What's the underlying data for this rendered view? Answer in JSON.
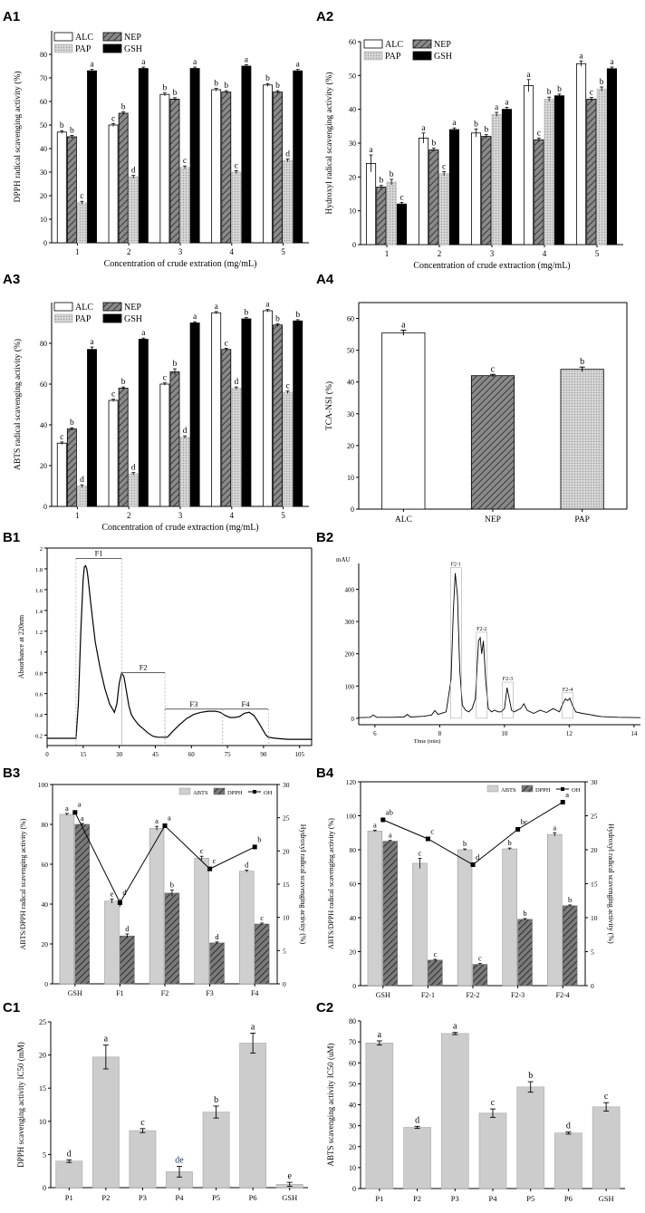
{
  "chart_data": [
    {
      "id": "A1",
      "type": "bar",
      "panel_label": "A1",
      "xlabel": "Concentration of crude extration (mg/mL)",
      "ylabel": "DPPH radical scavenging activity (%)",
      "ylim": [
        0,
        90
      ],
      "yticks": [
        0,
        10,
        20,
        30,
        40,
        50,
        60,
        70,
        80
      ],
      "categories": [
        "1",
        "2",
        "3",
        "4",
        "5"
      ],
      "series": [
        {
          "name": "ALC",
          "values": [
            47,
            50,
            63,
            65,
            67
          ],
          "err": [
            0.6,
            0.6,
            0.6,
            0.6,
            0.6
          ],
          "letters": [
            "b",
            "c",
            "b",
            "b",
            "b"
          ]
        },
        {
          "name": "NEP",
          "values": [
            45,
            55,
            61,
            64,
            64
          ],
          "err": [
            0.6,
            0.6,
            0.6,
            0.6,
            0.6
          ],
          "letters": [
            "b",
            "b",
            "b",
            "b",
            "b"
          ]
        },
        {
          "name": "PAP",
          "values": [
            17,
            28,
            32,
            30,
            35
          ],
          "err": [
            0.6,
            0.6,
            0.6,
            0.6,
            0.6
          ],
          "letters": [
            "c",
            "d",
            "c",
            "c",
            "d"
          ]
        },
        {
          "name": "GSH",
          "values": [
            73,
            74,
            74,
            75,
            73
          ],
          "err": [
            0.6,
            0.6,
            0.6,
            0.6,
            0.6
          ],
          "letters": [
            "a",
            "a",
            "a",
            "a",
            "a"
          ]
        }
      ],
      "legend_position": "top-left"
    },
    {
      "id": "A2",
      "type": "bar",
      "panel_label": "A2",
      "xlabel": "Concentration of crude extraction (mg/mL)",
      "ylabel": "Hydroxyl radical scavenging activity (%)",
      "ylim": [
        0,
        60
      ],
      "yticks": [
        0,
        10,
        20,
        30,
        40,
        50,
        60
      ],
      "categories": [
        "1",
        "2",
        "3",
        "4",
        "5"
      ],
      "series": [
        {
          "name": "ALC",
          "values": [
            24,
            31.5,
            33,
            47,
            53.5
          ],
          "err": [
            2.5,
            1.5,
            1.2,
            1.8,
            0.8
          ],
          "letters": [
            "a",
            "a",
            "b",
            "a",
            "a"
          ]
        },
        {
          "name": "NEP",
          "values": [
            17,
            28,
            32,
            31,
            43
          ],
          "err": [
            0.5,
            0.5,
            0.5,
            0.5,
            0.5
          ],
          "letters": [
            "b",
            "b",
            "b",
            "c",
            "c"
          ]
        },
        {
          "name": "PAP",
          "values": [
            18.5,
            21,
            38.5,
            43,
            46
          ],
          "err": [
            0.8,
            0.6,
            0.6,
            0.6,
            0.6
          ],
          "letters": [
            "b",
            "c",
            "a",
            "b",
            "b"
          ]
        },
        {
          "name": "GSH",
          "values": [
            12,
            34,
            40,
            44,
            52
          ],
          "err": [
            0.5,
            0.5,
            0.6,
            0.5,
            0.5
          ],
          "letters": [
            "c",
            "a",
            "a",
            "b",
            "a"
          ]
        }
      ],
      "legend_position": "top-left"
    },
    {
      "id": "A3",
      "type": "bar",
      "panel_label": "A3",
      "xlabel": "Concentration of crude extraction (mg/mL)",
      "ylabel": "ABTS radical scavenging activity (%)",
      "ylim": [
        0,
        100
      ],
      "yticks": [
        0,
        20,
        40,
        60,
        80
      ],
      "categories": [
        "1",
        "2",
        "3",
        "4",
        "5"
      ],
      "series": [
        {
          "name": "ALC",
          "values": [
            31,
            52,
            60,
            95,
            96
          ],
          "err": [
            0.6,
            0.6,
            0.6,
            0.6,
            0.6
          ],
          "letters": [
            "c",
            "c",
            "c",
            "a",
            "a"
          ]
        },
        {
          "name": "NEP",
          "values": [
            38,
            58,
            66,
            77,
            89
          ],
          "err": [
            0.6,
            0.6,
            1.5,
            0.6,
            0.6
          ],
          "letters": [
            "b",
            "b",
            "b",
            "c",
            "b"
          ]
        },
        {
          "name": "PAP",
          "values": [
            10,
            16,
            34,
            58,
            56
          ],
          "err": [
            0.6,
            0.6,
            0.6,
            0.6,
            0.6
          ],
          "letters": [
            "d",
            "d",
            "d",
            "d",
            "c"
          ]
        },
        {
          "name": "GSH",
          "values": [
            77,
            82,
            90,
            92,
            91
          ],
          "err": [
            1.2,
            0.6,
            0.6,
            0.6,
            0.6
          ],
          "letters": [
            "a",
            "a",
            "a",
            "b",
            "b"
          ]
        }
      ],
      "legend_position": "top-left"
    },
    {
      "id": "A4",
      "type": "bar",
      "panel_label": "A4",
      "xlabel": "",
      "ylabel": "TCA-NSI (%)",
      "ylim": [
        0,
        65
      ],
      "yticks": [
        0,
        10,
        20,
        30,
        40,
        50,
        60
      ],
      "categories": [
        "ALC",
        "NEP",
        "PAP"
      ],
      "values": [
        55.5,
        42,
        44
      ],
      "err": [
        0.8,
        0.4,
        0.7
      ],
      "letters": [
        "a",
        "c",
        "b"
      ]
    },
    {
      "id": "B1",
      "type": "line",
      "panel_label": "B1",
      "xlabel": "",
      "ylabel": "Absorbance at 220nm",
      "xlim": [
        0,
        110
      ],
      "xticks": [
        0,
        15,
        30,
        45,
        60,
        75,
        90,
        105
      ],
      "ylim": [
        0.1,
        2.0
      ],
      "yticks": [
        0.2,
        0.4,
        0.6,
        0.8,
        1.0,
        1.2,
        1.4,
        1.6,
        1.8,
        2.0
      ],
      "x": [
        0,
        12,
        13,
        14,
        15,
        15.5,
        16,
        16.5,
        17,
        18,
        19,
        20,
        22,
        24,
        26,
        28,
        29,
        30,
        31,
        32,
        33,
        34,
        35,
        36,
        38,
        40,
        42,
        44,
        46,
        48,
        50,
        52,
        55,
        58,
        61,
        64,
        67,
        70,
        72,
        74,
        76,
        78,
        80,
        82,
        84,
        86,
        88,
        90,
        91,
        92,
        95,
        100,
        110
      ],
      "y": [
        0.17,
        0.17,
        0.5,
        1.2,
        1.7,
        1.82,
        1.83,
        1.8,
        1.72,
        1.5,
        1.3,
        1.1,
        0.85,
        0.65,
        0.5,
        0.42,
        0.5,
        0.7,
        0.8,
        0.76,
        0.62,
        0.48,
        0.4,
        0.36,
        0.3,
        0.26,
        0.22,
        0.19,
        0.18,
        0.18,
        0.18,
        0.23,
        0.3,
        0.36,
        0.4,
        0.42,
        0.43,
        0.43,
        0.42,
        0.39,
        0.37,
        0.37,
        0.38,
        0.41,
        0.42,
        0.39,
        0.32,
        0.24,
        0.2,
        0.18,
        0.17,
        0.16,
        0.16
      ],
      "fractions": [
        {
          "label": "F1",
          "start": 12,
          "end": 31,
          "level": 1.9
        },
        {
          "label": "F2",
          "start": 31,
          "end": 49,
          "level": 0.8
        },
        {
          "label": "F3",
          "start": 49,
          "end": 73,
          "level": 0.45
        },
        {
          "label": "F4",
          "start": 73,
          "end": 92,
          "level": 0.45
        }
      ]
    },
    {
      "id": "B2",
      "type": "line",
      "panel_label": "B2",
      "xlabel": "Time (min)",
      "ylabel": "mAU",
      "xlim": [
        5.5,
        14.2
      ],
      "xticks": [
        6,
        8,
        10,
        12,
        14
      ],
      "ylim": [
        -20,
        480
      ],
      "yticks": [
        0,
        100,
        200,
        300,
        400
      ],
      "x": [
        5.5,
        5.85,
        5.95,
        6.05,
        6.5,
        6.9,
        7.0,
        7.1,
        7.5,
        7.75,
        7.85,
        7.95,
        8.2,
        8.35,
        8.42,
        8.48,
        8.55,
        8.62,
        8.7,
        8.8,
        8.9,
        9.0,
        9.1,
        9.2,
        9.25,
        9.3,
        9.35,
        9.42,
        9.5,
        9.6,
        9.7,
        9.8,
        9.9,
        10.0,
        10.08,
        10.15,
        10.22,
        10.3,
        10.5,
        10.6,
        10.7,
        10.9,
        11.1,
        11.3,
        11.5,
        11.7,
        11.8,
        11.88,
        11.95,
        12.02,
        12.1,
        12.2,
        12.4,
        12.6,
        12.8,
        13.0,
        13.5,
        14.2
      ],
      "y": [
        2,
        3,
        10,
        3,
        3,
        4,
        12,
        4,
        6,
        10,
        24,
        12,
        20,
        120,
        330,
        450,
        380,
        150,
        40,
        25,
        20,
        30,
        60,
        240,
        250,
        200,
        240,
        120,
        30,
        20,
        25,
        20,
        20,
        30,
        95,
        60,
        25,
        20,
        30,
        45,
        25,
        15,
        25,
        18,
        30,
        20,
        45,
        60,
        55,
        62,
        40,
        20,
        15,
        12,
        8,
        5,
        3,
        2
      ],
      "peak_labels": [
        {
          "label": "F2-1",
          "x": 8.5,
          "y": 450
        },
        {
          "label": "F2-2",
          "x": 9.3,
          "y": 250
        },
        {
          "label": "F2-3",
          "x": 10.1,
          "y": 95
        },
        {
          "label": "F2-4",
          "x": 11.95,
          "y": 62
        }
      ]
    },
    {
      "id": "B3",
      "type": "bar",
      "panel_label": "B3",
      "ylabel": "ABTS/DPPH radical scavenging activity (%)",
      "y2label": "Hydroxyl radical scavenging activity (%)",
      "ylim": [
        0,
        100
      ],
      "yticks": [
        0,
        20,
        40,
        60,
        80,
        100
      ],
      "y2lim": [
        0,
        30
      ],
      "y2ticks": [
        0,
        5,
        10,
        15,
        20,
        25,
        30
      ],
      "categories": [
        "GSH",
        "F1",
        "F2",
        "F3",
        "F4"
      ],
      "series": [
        {
          "name": "ABTS",
          "values": [
            85,
            41.5,
            78,
            63,
            56.5
          ],
          "err": [
            0.5,
            1,
            1,
            1,
            0.5
          ],
          "letters": [
            "a",
            "e",
            "a",
            "c",
            "d"
          ]
        },
        {
          "name": "DPPH",
          "values": [
            80,
            24,
            45.5,
            20.5,
            30
          ],
          "err": [
            0.5,
            1,
            1.5,
            0.5,
            0.5
          ],
          "letters": [
            "a",
            "d",
            "b",
            "d",
            "c"
          ]
        }
      ],
      "line": {
        "name": "OH",
        "values": [
          25.8,
          12.2,
          23.8,
          17.3,
          20.6
        ],
        "err": [
          0.3,
          0.6,
          0.3,
          0.3,
          0.2
        ],
        "letters": [
          "a",
          "d",
          "a",
          "c",
          "b"
        ]
      },
      "legend_position": "top-right"
    },
    {
      "id": "B4",
      "type": "bar",
      "panel_label": "B4",
      "ylabel": "ABTS/DPPH radical scavenging activity (%)",
      "y2label": "Hydroxyl radical scavenging activity (%)",
      "ylim": [
        0,
        120
      ],
      "yticks": [
        0,
        20,
        40,
        60,
        80,
        100,
        120
      ],
      "y2lim": [
        0,
        30
      ],
      "y2ticks": [
        0,
        5,
        10,
        15,
        20,
        25,
        30
      ],
      "categories": [
        "GSH",
        "F2-1",
        "F2-2",
        "F2-3",
        "F2-4"
      ],
      "series": [
        {
          "name": "ABTS",
          "values": [
            91,
            72,
            80,
            80.5,
            89
          ],
          "err": [
            0.5,
            3,
            0.5,
            0.5,
            1
          ],
          "letters": [
            "a",
            "c",
            "b",
            "b",
            "a"
          ]
        },
        {
          "name": "DPPH",
          "values": [
            85,
            15,
            12.5,
            39,
            47
          ],
          "err": [
            0.5,
            0.5,
            0.5,
            0.5,
            0.5
          ],
          "letters": [
            "a",
            "c",
            "c",
            "b",
            "b"
          ]
        }
      ],
      "line": {
        "name": "OH",
        "values": [
          24.4,
          21.6,
          17.8,
          23,
          27
        ],
        "err": [
          0.2,
          0.2,
          0.2,
          0.2,
          0.2
        ],
        "letters": [
          "ab",
          "c",
          "d",
          "bc",
          "a"
        ]
      },
      "legend_position": "top-right"
    },
    {
      "id": "C1",
      "type": "bar",
      "panel_label": "C1",
      "ylabel": "DPPH scavenging activity IC50 (mM)",
      "ylim": [
        0,
        25
      ],
      "yticks": [
        0,
        5,
        10,
        15,
        20,
        25
      ],
      "categories": [
        "P1",
        "P2",
        "P3",
        "P4",
        "P5",
        "P6",
        "GSH"
      ],
      "values": [
        4.0,
        19.7,
        8.6,
        2.4,
        11.4,
        21.8,
        0.5
      ],
      "err": [
        0.2,
        1.8,
        0.3,
        0.8,
        0.9,
        1.5,
        0.3
      ],
      "letters": [
        "d",
        "a",
        "c",
        "de",
        "b",
        "a",
        "e"
      ]
    },
    {
      "id": "C2",
      "type": "bar",
      "panel_label": "C2",
      "ylabel": "ABTS scavenging activity IC50 (uM)",
      "ylim": [
        0,
        80
      ],
      "yticks": [
        0,
        10,
        20,
        30,
        40,
        50,
        60,
        70,
        80
      ],
      "categories": [
        "P1",
        "P2",
        "P3",
        "P4",
        "P5",
        "P6",
        "GSH"
      ],
      "values": [
        69.5,
        29.2,
        74,
        36,
        48.5,
        26.5,
        39
      ],
      "err": [
        1.0,
        0.5,
        0.5,
        2.0,
        2.5,
        0.5,
        2.0
      ],
      "letters": [
        "a",
        "d",
        "a",
        "c",
        "b",
        "d",
        "c"
      ]
    }
  ]
}
